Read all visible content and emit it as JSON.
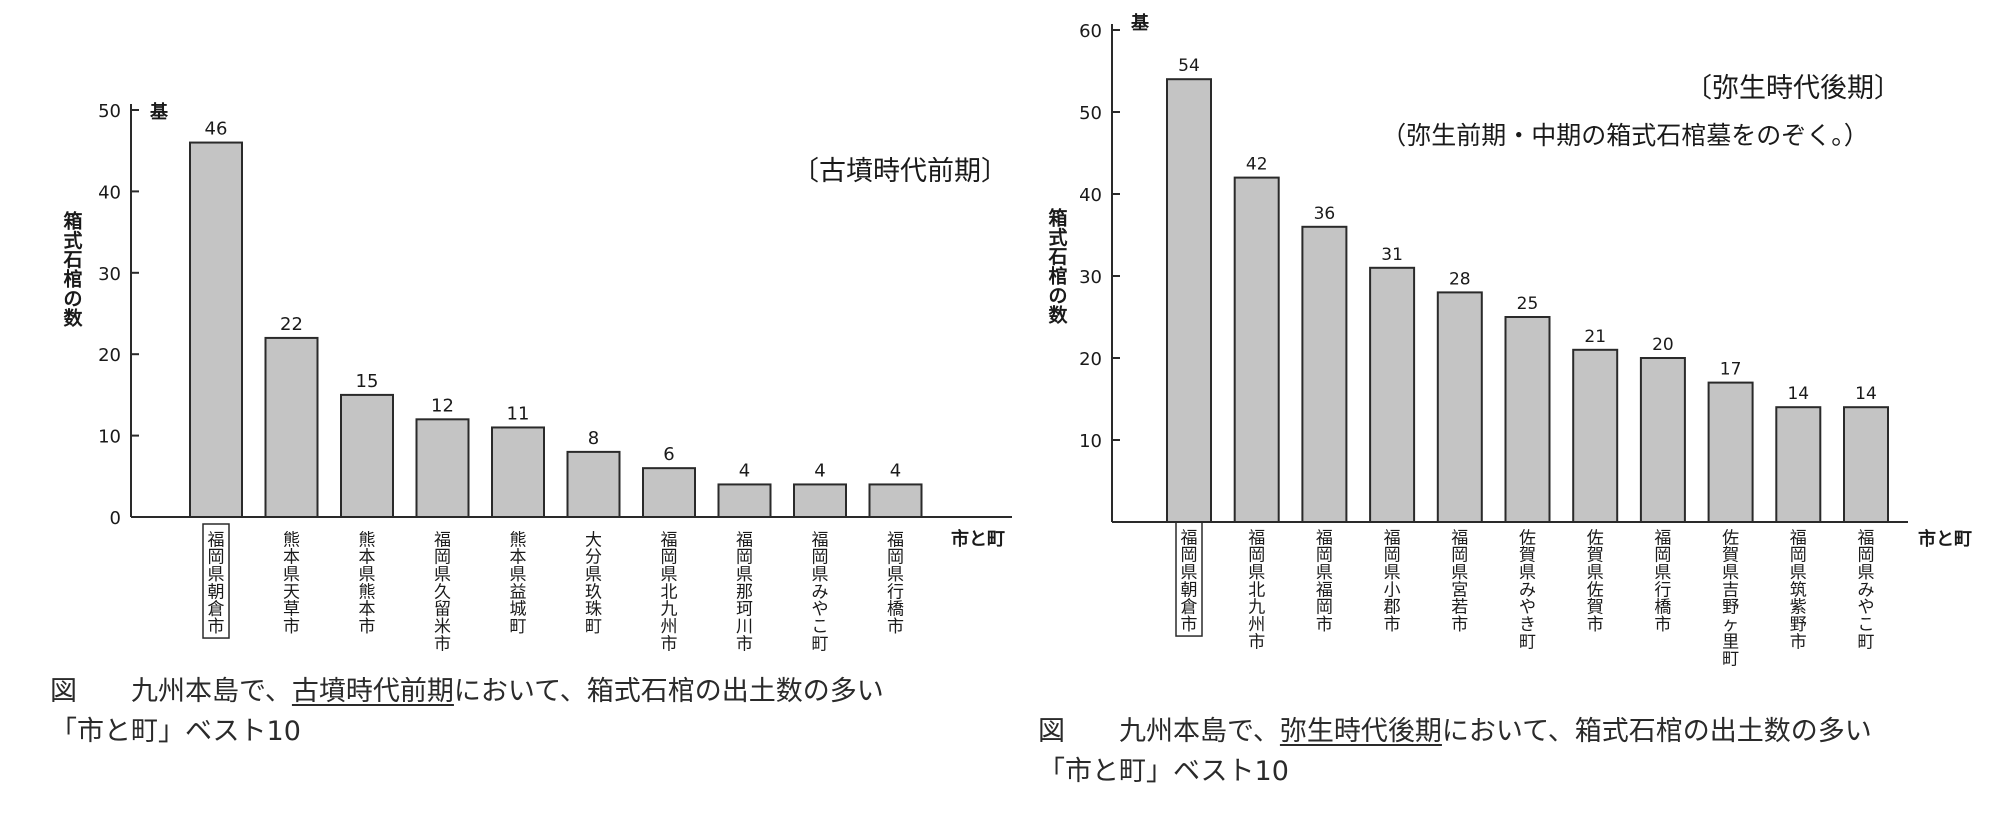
{
  "colors": {
    "bar_fill": "#c4c4c4",
    "bar_stroke": "#2a2a2a",
    "axis": "#2a2a2a",
    "text": "#1a1a1a"
  },
  "chart_data": [
    {
      "type": "bar",
      "title": "〔古墳時代前期〕",
      "subtitle": "",
      "ylabel": "箱式石棺の数",
      "yunit": "基",
      "xunit": "市と町",
      "ylim": [
        0,
        50
      ],
      "yticks": [
        0,
        10,
        20,
        30,
        40,
        50
      ],
      "grid": false,
      "categories": [
        "福岡県朝倉市",
        "熊本県天草市",
        "熊本県熊本市",
        "福岡県久留米市",
        "熊本県益城町",
        "大分県玖珠町",
        "福岡県北九州市",
        "福岡県那珂川市",
        "福岡県みやこ町",
        "福岡県行橋市"
      ],
      "values": [
        46,
        22,
        15,
        12,
        11,
        8,
        6,
        4,
        4,
        4
      ],
      "highlighted": [
        0
      ]
    },
    {
      "type": "bar",
      "title": "〔弥生時代後期〕",
      "subtitle": "（弥生前期・中期の箱式石棺墓をのぞく。）",
      "ylabel": "箱式石棺の数",
      "yunit": "基",
      "xunit": "市と町",
      "ylim": [
        0,
        60
      ],
      "yticks": [
        10,
        20,
        30,
        40,
        50,
        60
      ],
      "grid": false,
      "categories": [
        "福岡県朝倉市",
        "福岡県北九州市",
        "福岡県福岡市",
        "福岡県小郡市",
        "福岡県宮若市",
        "佐賀県みやき町",
        "佐賀県佐賀市",
        "福岡県行橋市",
        "佐賀県吉野ヶ里町",
        "福岡県筑紫野市",
        "福岡県みやこ町"
      ],
      "values": [
        54,
        42,
        36,
        31,
        28,
        25,
        21,
        20,
        17,
        14,
        14
      ],
      "highlighted": [
        0
      ]
    }
  ],
  "captions": [
    {
      "fig": "図",
      "pre": "九州本島で、",
      "em": "古墳時代前期",
      "post": "において、箱式石棺の出土数の多い",
      "line2": "「市と町」ベスト10"
    },
    {
      "fig": "図",
      "pre": "九州本島で、",
      "em": "弥生時代後期",
      "post": "において、箱式石棺の出土数の多い",
      "line2": "「市と町」ベスト10"
    }
  ]
}
